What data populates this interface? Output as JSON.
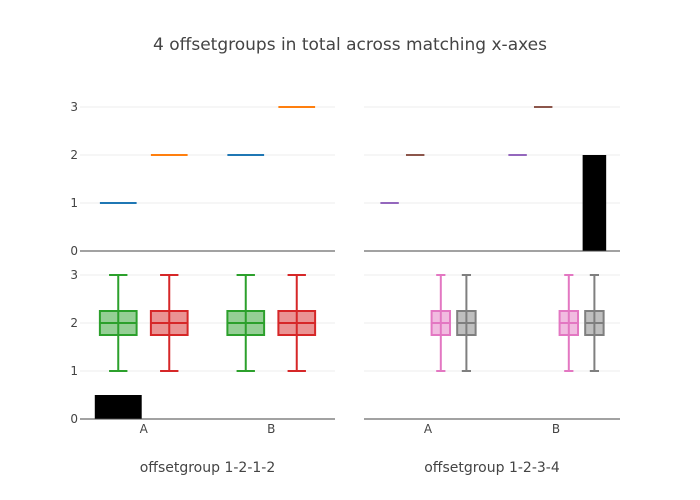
{
  "chart_data": {
    "type": "box",
    "title": "4 offsetgroups in total across matching x-axes",
    "categories": [
      "A",
      "B"
    ],
    "ylim": [
      0,
      3
    ],
    "yticks": [
      0,
      1,
      2,
      3
    ],
    "grid": true,
    "subplots": [
      {
        "position": "top-left",
        "traces": [
          {
            "type": "box",
            "color": "#1f77b4",
            "offsetgroup": 1,
            "A": [
              1,
              1,
              1
            ],
            "B": [
              2,
              2,
              2
            ]
          },
          {
            "type": "box",
            "color": "#ff7f0e",
            "offsetgroup": 2,
            "A": [
              2,
              2,
              2
            ],
            "B": [
              3,
              3,
              3
            ]
          }
        ]
      },
      {
        "position": "bottom-left",
        "xlabel": "offsetgroup 1-2-1-2",
        "traces": [
          {
            "type": "bar",
            "color": "#000000",
            "offsetgroup": 1,
            "A": 0.5,
            "B": 0
          },
          {
            "type": "box",
            "color": "#2ca02c",
            "offsetgroup": 1,
            "A": [
              1,
              2,
              3
            ],
            "B": [
              1,
              2,
              3
            ]
          },
          {
            "type": "box",
            "color": "#d62728",
            "offsetgroup": 2,
            "A": [
              1,
              2,
              3
            ],
            "B": [
              1,
              2,
              3
            ]
          }
        ]
      },
      {
        "position": "top-right",
        "traces": [
          {
            "type": "box",
            "color": "#9467bd",
            "offsetgroup": 1,
            "A": [
              1,
              1,
              1
            ],
            "B": [
              2,
              2,
              2
            ]
          },
          {
            "type": "box",
            "color": "#8c564b",
            "offsetgroup": 2,
            "A": [
              2,
              2,
              2
            ],
            "B": [
              3,
              3,
              3
            ]
          },
          {
            "type": "bar",
            "color": "#000000",
            "offsetgroup": 4,
            "A": 0,
            "B": 2
          }
        ]
      },
      {
        "position": "bottom-right",
        "xlabel": "offsetgroup 1-2-3-4",
        "traces": [
          {
            "type": "box",
            "color": "#e377c2",
            "offsetgroup": 3,
            "A": [
              1,
              2,
              3
            ],
            "B": [
              1,
              2,
              3
            ]
          },
          {
            "type": "box",
            "color": "#7f7f7f",
            "offsetgroup": 4,
            "A": [
              1,
              2,
              3
            ],
            "B": [
              1,
              2,
              3
            ]
          }
        ]
      }
    ]
  }
}
